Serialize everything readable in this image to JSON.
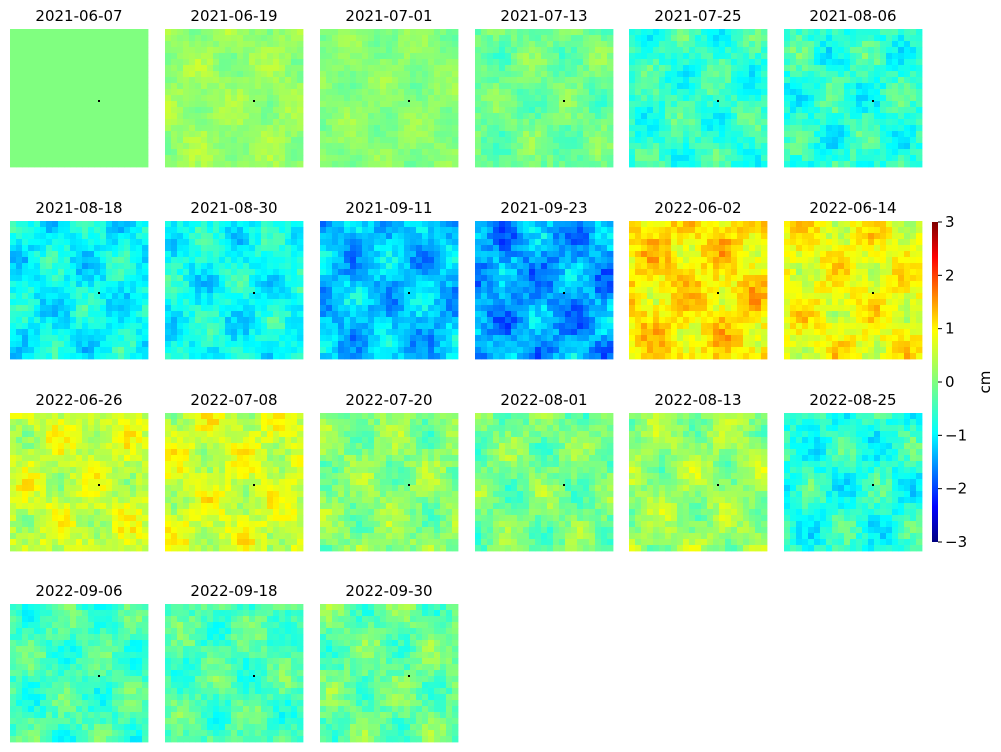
{
  "chart_data": {
    "type": "heatmap",
    "description_hint": "",
    "colormap": "jet",
    "colors": {
      "jet_stops": [
        "#00007f",
        "#0000ff",
        "#007fff",
        "#00ffff",
        "#7fff7f",
        "#ffff00",
        "#ff7f00",
        "#ff0000",
        "#7f0000"
      ]
    },
    "panels": [
      {
        "date": "2021-06-07",
        "mean": 0.0,
        "spread": 0.0
      },
      {
        "date": "2021-06-19",
        "mean": 0.15,
        "spread": 0.35
      },
      {
        "date": "2021-07-01",
        "mean": 0.05,
        "spread": 0.3
      },
      {
        "date": "2021-07-13",
        "mean": -0.1,
        "spread": 0.45
      },
      {
        "date": "2021-07-25",
        "mean": -0.45,
        "spread": 0.6
      },
      {
        "date": "2021-08-06",
        "mean": -0.5,
        "spread": 0.7
      },
      {
        "date": "2021-08-18",
        "mean": -0.75,
        "spread": 0.65
      },
      {
        "date": "2021-08-30",
        "mean": -0.7,
        "spread": 0.65
      },
      {
        "date": "2021-09-11",
        "mean": -1.1,
        "spread": 0.7
      },
      {
        "date": "2021-09-23",
        "mean": -1.3,
        "spread": 0.8
      },
      {
        "date": "2022-06-02",
        "mean": 0.9,
        "spread": 0.7
      },
      {
        "date": "2022-06-14",
        "mean": 0.7,
        "spread": 0.65
      },
      {
        "date": "2022-06-26",
        "mean": 0.45,
        "spread": 0.65
      },
      {
        "date": "2022-07-08",
        "mean": 0.5,
        "spread": 0.65
      },
      {
        "date": "2022-07-20",
        "mean": 0.05,
        "spread": 0.6
      },
      {
        "date": "2022-08-01",
        "mean": -0.05,
        "spread": 0.6
      },
      {
        "date": "2022-08-13",
        "mean": 0.15,
        "spread": 0.6
      },
      {
        "date": "2022-08-25",
        "mean": -0.55,
        "spread": 0.7
      },
      {
        "date": "2022-09-06",
        "mean": -0.35,
        "spread": 0.6
      },
      {
        "date": "2022-09-18",
        "mean": -0.3,
        "spread": 0.6
      },
      {
        "date": "2022-09-30",
        "mean": -0.15,
        "spread": 0.6
      }
    ],
    "colorbar": {
      "label": "cm",
      "range": [
        -3,
        3
      ],
      "ticks": [
        "3",
        "2",
        "1",
        "0",
        "−1",
        "−2",
        "−3"
      ],
      "tick_values": [
        3,
        2,
        1,
        0,
        -1,
        -2,
        -3
      ]
    },
    "grid": false
  }
}
